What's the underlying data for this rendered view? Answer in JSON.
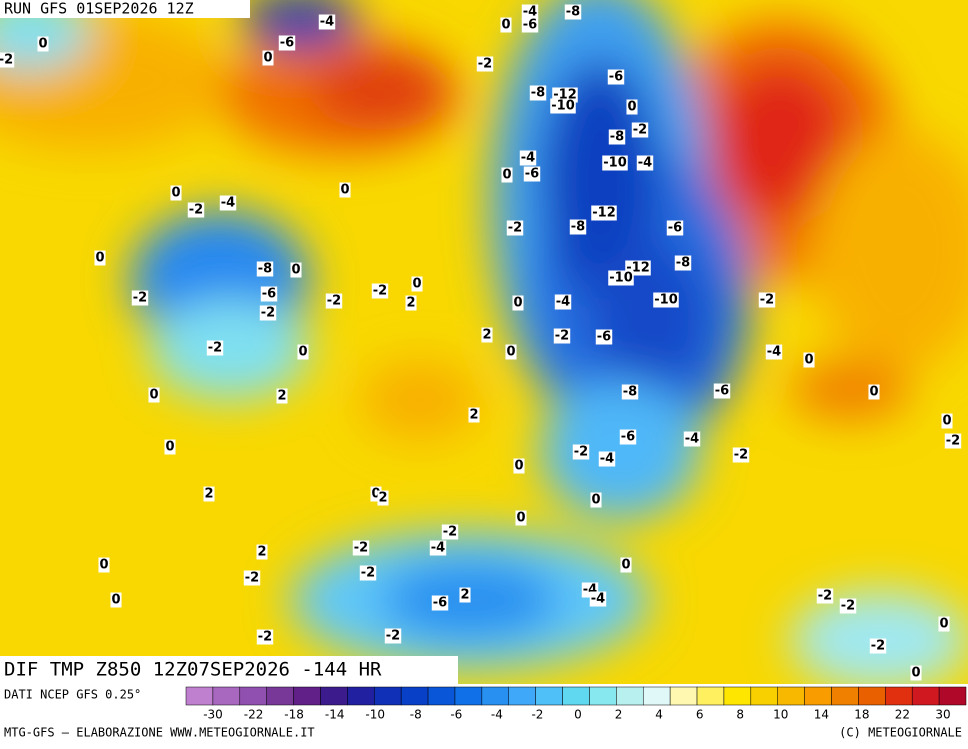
{
  "header": {
    "run": "RUN GFS 01SEP2026 12Z"
  },
  "map": {
    "product": "DIF TMP Z850 12Z07SEP2026 -144 HR",
    "contour_labels": [
      -4,
      0,
      -2,
      0,
      -6,
      -8,
      -4,
      0,
      -6,
      -2,
      -6,
      -8,
      -12,
      -10,
      0,
      -2,
      -8,
      -4,
      -6,
      0,
      -10,
      -4,
      0,
      0,
      -2,
      -4,
      -12,
      -8,
      -2,
      -6,
      0,
      -8,
      0,
      -12,
      -10,
      -8,
      -6,
      -2,
      -2,
      -2,
      0,
      2,
      -4,
      -10,
      -2,
      0,
      -2,
      2,
      -2,
      -6,
      -2,
      0,
      0,
      -4,
      0,
      0,
      2,
      -8,
      -6,
      0,
      2,
      0,
      0,
      -6,
      -4,
      -2,
      -2,
      -4,
      -2,
      0,
      2,
      0,
      2,
      0,
      0,
      -2,
      -4,
      -2,
      2,
      0,
      -2,
      0,
      -2,
      -4,
      -4,
      -6,
      2,
      0,
      -2,
      -2,
      -2,
      -2,
      0,
      -2,
      0
    ]
  },
  "colorbar": {
    "source": "DATI NCEP GFS 0.25°",
    "colors": [
      "#c080d0",
      "#a868c0",
      "#9050b0",
      "#783898",
      "#602088",
      "#3c1c8c",
      "#2020a0",
      "#1030b8",
      "#0840c8",
      "#0a56d8",
      "#1070e8",
      "#2890f0",
      "#40a8f8",
      "#50c0f8",
      "#60d8f0",
      "#88e8f0",
      "#b8f0f0",
      "#e0f8f8",
      "#fff8b0",
      "#fff060",
      "#ffe600",
      "#f8d000",
      "#f8b800",
      "#f89c00",
      "#f08000",
      "#e86000",
      "#e03010",
      "#d01820",
      "#b00828"
    ],
    "ticks": [
      -30,
      -22,
      -18,
      -14,
      -10,
      -8,
      -6,
      -4,
      -2,
      0,
      2,
      4,
      6,
      8,
      10,
      14,
      18,
      22,
      30
    ]
  },
  "footer": {
    "left": "MTG-GFS — ELABORAZIONE WWW.METEOGIORNALE.IT",
    "right": "(C) METEOGIORNALE"
  }
}
